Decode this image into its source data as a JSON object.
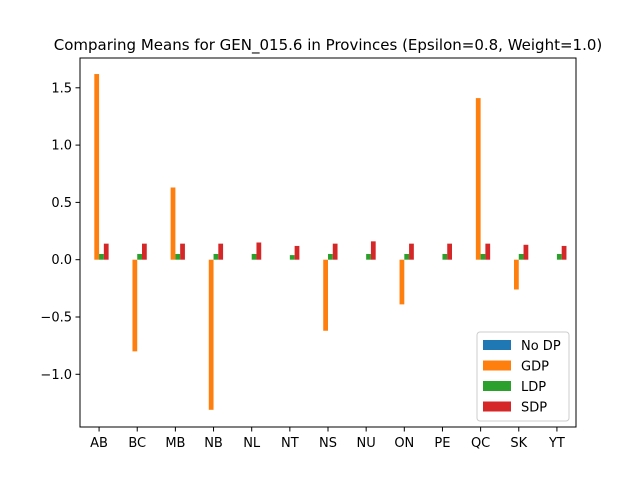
{
  "chart_data": {
    "type": "bar",
    "title": "Comparing Means for GEN_015.6 in Provinces (Epsilon=0.8, Weight=1.0)",
    "xlabel": "",
    "ylabel": "",
    "categories": [
      "AB",
      "BC",
      "MB",
      "NB",
      "NL",
      "NT",
      "NS",
      "NU",
      "ON",
      "PE",
      "QC",
      "SK",
      "YT"
    ],
    "series": [
      {
        "name": "No DP",
        "color": "#1f77b4",
        "values": [
          0,
          0,
          0,
          0,
          0,
          0,
          0,
          0,
          0,
          0,
          0,
          0,
          0
        ]
      },
      {
        "name": "GDP",
        "color": "#ff7f0e",
        "values": [
          1.62,
          -0.8,
          0.63,
          -1.31,
          0,
          0,
          -0.62,
          0,
          -0.39,
          0,
          1.41,
          -0.26,
          0
        ]
      },
      {
        "name": "LDP",
        "color": "#2ca02c",
        "values": [
          0.05,
          0.05,
          0.05,
          0.05,
          0.05,
          0.04,
          0.05,
          0.05,
          0.05,
          0.05,
          0.05,
          0.05,
          0.05
        ]
      },
      {
        "name": "SDP",
        "color": "#d62728",
        "values": [
          0.14,
          0.14,
          0.14,
          0.14,
          0.15,
          0.12,
          0.14,
          0.16,
          0.14,
          0.14,
          0.14,
          0.13,
          0.12
        ]
      }
    ],
    "yticks": [
      -1.0,
      -0.5,
      0.0,
      0.5,
      1.0,
      1.5
    ],
    "ytick_labels": [
      "−1.0",
      "−0.5",
      "0.0",
      "0.5",
      "1.0",
      "1.5"
    ],
    "ylim": [
      -1.46,
      1.76
    ],
    "legend_position": "lower-right",
    "grid": false
  }
}
